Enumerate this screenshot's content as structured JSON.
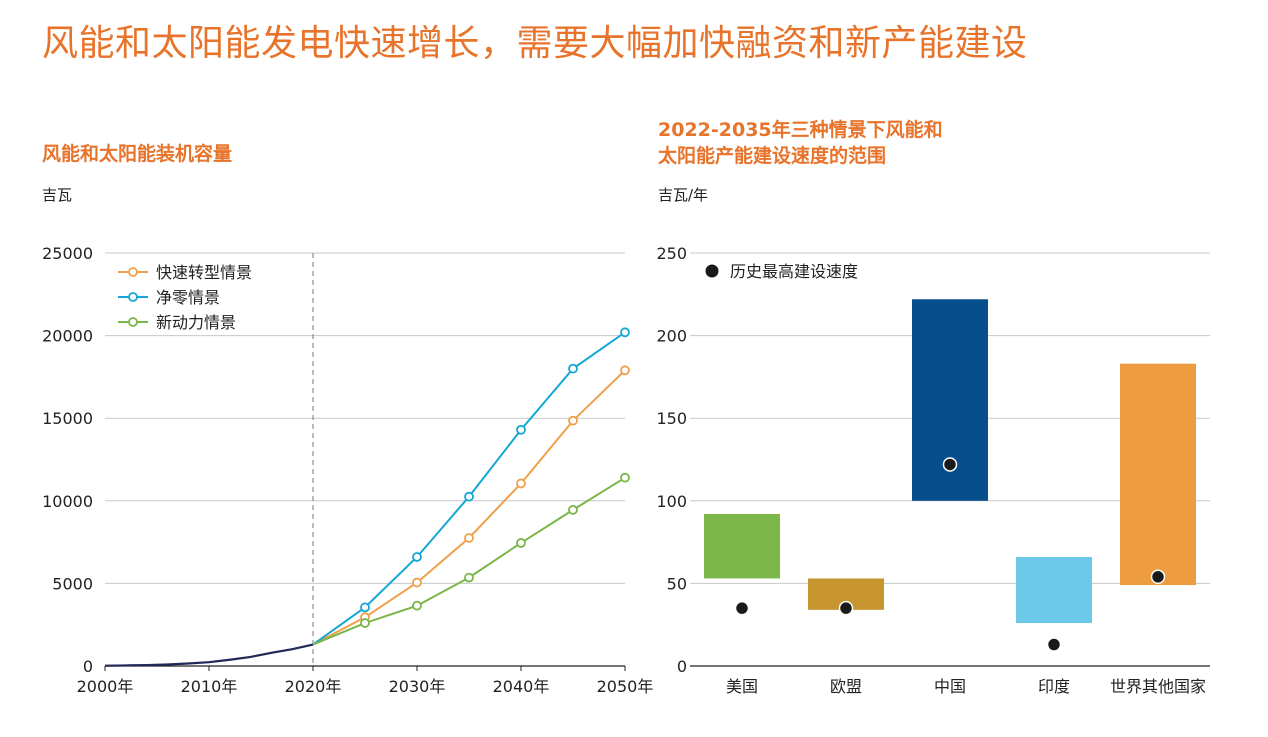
{
  "title": "风能和太阳能发电快速增长，需要大幅加快融资和新产能建设",
  "left_panel": {
    "title": "风能和太阳能装机容量",
    "unit": "吉瓦"
  },
  "right_panel": {
    "title_line1": "2022-2035年三种情景下风能和",
    "title_line2": "太阳能产能建设速度的范围",
    "unit": "吉瓦/年"
  },
  "chart_data": [
    {
      "type": "line",
      "title": "风能和太阳能装机容量",
      "ylabel": "吉瓦",
      "ylim": [
        0,
        25000
      ],
      "yticks": [
        0,
        5000,
        10000,
        15000,
        20000,
        25000
      ],
      "xlim": [
        2000,
        2050
      ],
      "xticks": [
        2000,
        2010,
        2020,
        2030,
        2040,
        2050
      ],
      "xtick_labels": [
        "2000年",
        "2010年",
        "2020年",
        "2030年",
        "2040年",
        "2050年"
      ],
      "divider_year": 2020,
      "history": {
        "x": [
          2000,
          2002,
          2004,
          2006,
          2008,
          2010,
          2012,
          2014,
          2016,
          2018,
          2020
        ],
        "y": [
          20,
          35,
          55,
          90,
          150,
          230,
          380,
          550,
          800,
          1020,
          1300
        ],
        "color": "#1f2857"
      },
      "series": [
        {
          "name": "快速转型情景",
          "color": "#f0a04b",
          "x": [
            2020,
            2025,
            2030,
            2035,
            2040,
            2045,
            2050
          ],
          "y": [
            1300,
            2950,
            5050,
            7750,
            11050,
            14850,
            17900
          ]
        },
        {
          "name": "净零情景",
          "color": "#14a7d6",
          "x": [
            2020,
            2025,
            2030,
            2035,
            2040,
            2045,
            2050
          ],
          "y": [
            1300,
            3550,
            6600,
            10250,
            14300,
            18000,
            20200
          ]
        },
        {
          "name": "新动力情景",
          "color": "#7ab648",
          "x": [
            2020,
            2025,
            2030,
            2035,
            2040,
            2045,
            2050
          ],
          "y": [
            1300,
            2600,
            3650,
            5350,
            7450,
            9450,
            11400
          ]
        }
      ]
    },
    {
      "type": "bar",
      "title": "2022-2035年三种情景下风能和太阳能产能建设速度的范围",
      "ylabel": "吉瓦/年",
      "ylim": [
        0,
        250
      ],
      "yticks": [
        0,
        50,
        100,
        150,
        200,
        250
      ],
      "categories": [
        "美国",
        "欧盟",
        "中国",
        "印度",
        "世界其他国家"
      ],
      "range_low": [
        53,
        34,
        100,
        26,
        49
      ],
      "range_high": [
        92,
        53,
        222,
        66,
        183
      ],
      "colors": [
        "#7ab648",
        "#c8962e",
        "#064f8c",
        "#6ec8e8",
        "#ee9c40"
      ],
      "historical_max": [
        35,
        35,
        122,
        13,
        54
      ],
      "legend_label": "历史最高建设速度"
    }
  ]
}
